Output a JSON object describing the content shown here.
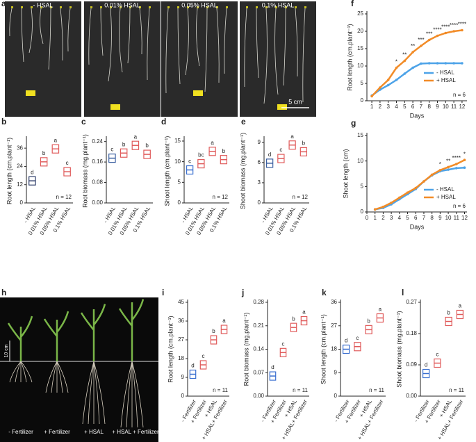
{
  "panel_labels": [
    "a",
    "b",
    "c",
    "d",
    "e",
    "f",
    "g",
    "h",
    "i",
    "j",
    "k",
    "l"
  ],
  "photos": [
    {
      "labels": [
        "- HSAL",
        "0.01% HSAL",
        "0.05% HSAL",
        "0.1% HSAL"
      ],
      "scale": "5 cm"
    },
    {
      "labels": [
        "- Fertilizer",
        "+ Fertilizer",
        "+ HSAL",
        "+ HSAL + Fertilizer"
      ],
      "scale": "10 cm"
    }
  ],
  "chart_data": [
    {
      "type": "box",
      "ylabel": "Root length (cm.plant⁻¹)",
      "categories": [
        "- HSAL",
        "0.01% HSAL",
        "0.05% HSAL",
        "0.1% HSAL"
      ],
      "values": [
        14.5,
        27,
        35.5,
        20.5
      ],
      "colors": [
        "#2b3a67",
        "#e05a5a",
        "#e05a5a",
        "#e05a5a"
      ],
      "letters": [
        "d",
        "b",
        "a",
        "c"
      ],
      "note": "n = 12",
      "ylim": [
        0,
        42
      ],
      "yticks": [
        0,
        12,
        24,
        36
      ]
    },
    {
      "type": "box",
      "ylabel": "Root biomass (mg.plant⁻¹)",
      "categories": [
        "- HSAL",
        "0.01% HSAL",
        "0.05% HSAL",
        "0.1% HSAL"
      ],
      "values": [
        0.175,
        0.195,
        0.225,
        0.19
      ],
      "colors": [
        "#3a5fa0",
        "#e05a5a",
        "#e05a5a",
        "#e05a5a"
      ],
      "letters": [
        "c",
        "b",
        "a",
        "b"
      ],
      "ylim": [
        0,
        0.25
      ],
      "yticks": [
        {
          "value": 0,
          "label": "0.00"
        },
        0.08,
        0.16,
        0.24
      ]
    },
    {
      "type": "box",
      "ylabel": "Shoot length (cm.plant⁻¹)",
      "categories": [
        "- HSAL",
        "0.01% HSAL",
        "0.05% HSAL",
        "0.1% HSAL"
      ],
      "values": [
        8,
        9.5,
        12.5,
        10.5
      ],
      "colors": [
        "#3a6fd0",
        "#e05a5a",
        "#e05a5a",
        "#e05a5a"
      ],
      "letters": [
        "c",
        "bc",
        "a",
        "b"
      ],
      "note": "n = 12",
      "ylim": [
        0,
        15.5
      ],
      "yticks": [
        0,
        5,
        10,
        15
      ]
    },
    {
      "type": "box",
      "ylabel": "Shoot biomass (mg.plant⁻¹)",
      "categories": [
        "- HSAL",
        "0.01% HSAL",
        "0.05% HSAL",
        "0.1% HSAL"
      ],
      "values": [
        5.9,
        6.6,
        8.6,
        7.6
      ],
      "colors": [
        "#3a5fa0",
        "#e05a5a",
        "#e05a5a",
        "#e05a5a"
      ],
      "letters": [
        "d",
        "c",
        "a",
        "b"
      ],
      "note": "n = 12",
      "ylim": [
        0,
        9.5
      ],
      "yticks": [
        0,
        3,
        6,
        9
      ]
    },
    {
      "type": "line",
      "ylabel": "Root length (cm.plant⁻¹)",
      "xlabel": "Days",
      "x": [
        1,
        2,
        3,
        4,
        5,
        6,
        7,
        8,
        9,
        10,
        11,
        12
      ],
      "xlim": [
        0.4,
        12.6
      ],
      "xticks": [
        1,
        2,
        3,
        4,
        5,
        6,
        7,
        8,
        9,
        10,
        11,
        12
      ],
      "ylim": [
        0,
        25
      ],
      "yticks": [
        0,
        5,
        10,
        15,
        20,
        25
      ],
      "series": [
        {
          "name": "- HSAL",
          "color": "#4da3e8",
          "values": [
            1.5,
            3.2,
            4.5,
            6,
            7.8,
            9.5,
            10.7,
            10.8,
            10.8,
            10.8,
            10.8,
            10.8
          ]
        },
        {
          "name": "+ HSAL",
          "color": "#f28c28",
          "values": [
            1.3,
            3.8,
            6,
            9.5,
            11.5,
            14,
            15.8,
            17.5,
            18.7,
            19.5,
            20,
            20.3
          ]
        }
      ],
      "annotations": [
        {
          "x": 4,
          "label": "*"
        },
        {
          "x": 5,
          "label": "**"
        },
        {
          "x": 6,
          "label": "**"
        },
        {
          "x": 7,
          "label": "***"
        },
        {
          "x": 8,
          "label": "***"
        },
        {
          "x": 9,
          "label": "****"
        },
        {
          "x": 10,
          "label": "****"
        },
        {
          "x": 11,
          "label": "****"
        },
        {
          "x": 12,
          "label": "****"
        }
      ],
      "note": "n = 6"
    },
    {
      "type": "line",
      "ylabel": "Shoot length (cm)",
      "xlabel": "Days",
      "x": [
        1,
        2,
        3,
        4,
        5,
        6,
        7,
        8,
        9,
        10,
        11,
        12
      ],
      "xlim": [
        0,
        12.3
      ],
      "xticks": [
        0,
        1,
        2,
        3,
        4,
        5,
        6,
        7,
        8,
        9,
        10,
        11,
        12
      ],
      "ylim": [
        0,
        15
      ],
      "yticks": [
        0,
        5,
        10,
        15
      ],
      "series": [
        {
          "name": "- HSAL",
          "color": "#4da3e8",
          "values": [
            0.5,
            0.8,
            1.5,
            2.5,
            3.5,
            4.5,
            6,
            7.2,
            8,
            8.3,
            8.6,
            8.7
          ]
        },
        {
          "name": "+ HSAL",
          "color": "#f28c28",
          "values": [
            0.5,
            1,
            1.8,
            2.8,
            3.8,
            4.7,
            6,
            7.3,
            8.2,
            8.8,
            9.4,
            10.2
          ]
        }
      ],
      "annotations": [
        {
          "x": 9,
          "label": "*"
        },
        {
          "x": 10,
          "label": "**"
        },
        {
          "x": 11,
          "label": "****"
        },
        {
          "x": 12,
          "label": "*"
        }
      ],
      "note": "n = 6"
    },
    {
      "type": "box",
      "ylabel": "Root length (cm.plant⁻¹)",
      "categories": [
        "- Fertilizer",
        "+ Fertilizer",
        "+ HSAL",
        "+ HSAL+ Fertilizer"
      ],
      "values": [
        10.5,
        15,
        27,
        32
      ],
      "colors": [
        "#3a6fd0",
        "#e05a5a",
        "#e05a5a",
        "#e05a5a"
      ],
      "letters": [
        "d",
        "c",
        "b",
        "a"
      ],
      "note": "n = 11",
      "ylim": [
        0,
        45
      ],
      "yticks": [
        0,
        9,
        18,
        27,
        36,
        45
      ]
    },
    {
      "type": "box",
      "ylabel": "Root biomass (mg.plant⁻¹)",
      "categories": [
        "- Fertilizer",
        "+ Fertilizer",
        "+ HSAL",
        "+ HSAL+ Fertilizer"
      ],
      "values": [
        0.06,
        0.13,
        0.205,
        0.225
      ],
      "colors": [
        "#3a6fd0",
        "#e05a5a",
        "#e05a5a",
        "#e05a5a"
      ],
      "letters": [
        "d",
        "c",
        "b",
        "a"
      ],
      "note": "n = 11",
      "ylim": [
        0,
        0.28
      ],
      "yticks": [
        {
          "value": 0,
          "label": "0.00"
        },
        0.07,
        0.14,
        0.21,
        0.28
      ]
    },
    {
      "type": "box",
      "ylabel": "Shoot length (cm.plant⁻¹)",
      "categories": [
        "- Fertilizer",
        "+ Fertilizer",
        "+ HSAL",
        "+ HSAL+ Fertilizer"
      ],
      "values": [
        18,
        19,
        25.5,
        30
      ],
      "colors": [
        "#3a6fd0",
        "#e05a5a",
        "#e05a5a",
        "#e05a5a"
      ],
      "letters": [
        "d",
        "c",
        "b",
        "a"
      ],
      "note": "n = 11",
      "ylim": [
        0,
        36
      ],
      "yticks": [
        0,
        9,
        18,
        27,
        36
      ]
    },
    {
      "type": "box",
      "ylabel": "Shoot biomass (mg.plant⁻¹)",
      "categories": [
        "- Fertilizer",
        "+ Fertilizer",
        "+ HSAL",
        "+ HSAL+ Fertilizer"
      ],
      "values": [
        0.065,
        0.095,
        0.215,
        0.235
      ],
      "colors": [
        "#3a6fd0",
        "#e05a5a",
        "#e05a5a",
        "#e05a5a"
      ],
      "letters": [
        "d",
        "c",
        "b",
        "a"
      ],
      "note": "n = 11",
      "ylim": [
        0,
        0.27
      ],
      "yticks": [
        {
          "value": 0,
          "label": "0.00"
        },
        0.09,
        0.18,
        0.27
      ]
    }
  ]
}
